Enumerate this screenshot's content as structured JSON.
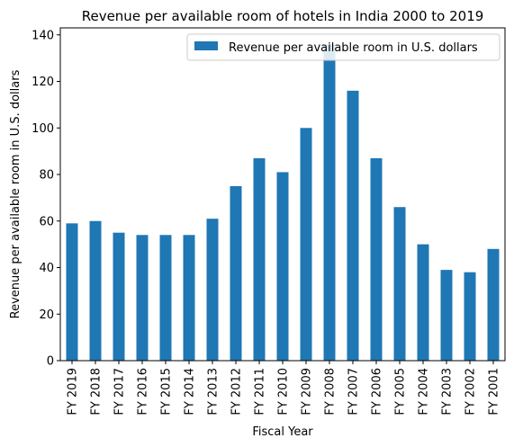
{
  "chart_data": {
    "type": "bar",
    "title": "Revenue per available room of hotels in India 2000 to 2019",
    "xlabel": "Fiscal Year",
    "ylabel": "Revenue per available room in U.S. dollars",
    "categories": [
      "FY 2019",
      "FY 2018",
      "FY 2017",
      "FY 2016",
      "FY 2015",
      "FY 2014",
      "FY 2013",
      "FY 2012",
      "FY 2011",
      "FY 2010",
      "FY 2009",
      "FY 2008",
      "FY 2007",
      "FY 2006",
      "FY 2005",
      "FY 2004",
      "FY 2003",
      "FY 2002",
      "FY 2001"
    ],
    "series": [
      {
        "name": "Revenue per available room in U.S. dollars",
        "color": "#1f77b4",
        "values": [
          59,
          60,
          55,
          54,
          54,
          54,
          61,
          75,
          87,
          81,
          100,
          136,
          116,
          87,
          66,
          50,
          39,
          38,
          48
        ]
      }
    ],
    "ylim": [
      0,
      143
    ],
    "yticks": [
      0,
      20,
      40,
      60,
      80,
      100,
      120,
      140
    ],
    "grid": false,
    "legend": "top-right"
  }
}
